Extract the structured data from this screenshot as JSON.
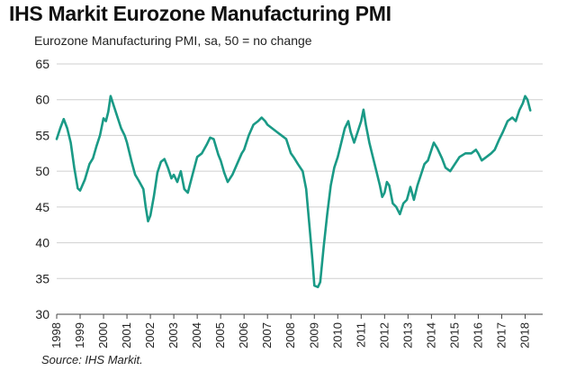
{
  "chart_data": {
    "type": "line",
    "title": "IHS Markit Eurozone Manufacturing PMI",
    "subtitle": "Eurozone Manufacturing PMI, sa, 50 = no change",
    "source": "Source: IHS Markit.",
    "xlabel": "",
    "ylabel": "",
    "ylim": [
      30,
      65
    ],
    "xlim": [
      1998,
      2018.75
    ],
    "yticks": [
      "30",
      "35",
      "40",
      "45",
      "50",
      "55",
      "60",
      "65"
    ],
    "xticks": [
      "1998",
      "1999",
      "2000",
      "2001",
      "2002",
      "2003",
      "2004",
      "2005",
      "2006",
      "2007",
      "2008",
      "2009",
      "2010",
      "2011",
      "2012",
      "2013",
      "2014",
      "2015",
      "2016",
      "2017",
      "2018"
    ],
    "grid": true,
    "color": "#1a9a86",
    "series": [
      {
        "name": "Eurozone Manufacturing PMI",
        "points": [
          [
            1998.0,
            54.5
          ],
          [
            1998.15,
            56.0
          ],
          [
            1998.3,
            57.3
          ],
          [
            1998.45,
            56.0
          ],
          [
            1998.6,
            54.0
          ],
          [
            1998.75,
            50.5
          ],
          [
            1998.9,
            47.6
          ],
          [
            1999.0,
            47.3
          ],
          [
            1999.2,
            48.8
          ],
          [
            1999.4,
            51.0
          ],
          [
            1999.55,
            51.8
          ],
          [
            1999.7,
            53.5
          ],
          [
            1999.85,
            55.0
          ],
          [
            2000.0,
            57.4
          ],
          [
            2000.1,
            57.0
          ],
          [
            2000.2,
            58.3
          ],
          [
            2000.3,
            60.5
          ],
          [
            2000.45,
            59.0
          ],
          [
            2000.6,
            57.5
          ],
          [
            2000.75,
            56.0
          ],
          [
            2000.9,
            55.0
          ],
          [
            2001.0,
            54.0
          ],
          [
            2001.2,
            51.3
          ],
          [
            2001.35,
            49.5
          ],
          [
            2001.5,
            48.7
          ],
          [
            2001.7,
            47.5
          ],
          [
            2001.8,
            45.0
          ],
          [
            2001.9,
            43.0
          ],
          [
            2002.0,
            43.8
          ],
          [
            2002.15,
            46.5
          ],
          [
            2002.3,
            49.8
          ],
          [
            2002.45,
            51.3
          ],
          [
            2002.6,
            51.7
          ],
          [
            2002.75,
            50.5
          ],
          [
            2002.9,
            49.0
          ],
          [
            2003.0,
            49.5
          ],
          [
            2003.15,
            48.5
          ],
          [
            2003.3,
            50.0
          ],
          [
            2003.45,
            47.5
          ],
          [
            2003.6,
            47.0
          ],
          [
            2003.8,
            49.5
          ],
          [
            2004.0,
            52.0
          ],
          [
            2004.2,
            52.5
          ],
          [
            2004.4,
            53.7
          ],
          [
            2004.55,
            54.7
          ],
          [
            2004.7,
            54.5
          ],
          [
            2004.9,
            52.3
          ],
          [
            2005.0,
            51.5
          ],
          [
            2005.15,
            49.8
          ],
          [
            2005.3,
            48.5
          ],
          [
            2005.5,
            49.5
          ],
          [
            2005.7,
            51.0
          ],
          [
            2005.9,
            52.5
          ],
          [
            2006.0,
            53.0
          ],
          [
            2006.2,
            55.0
          ],
          [
            2006.4,
            56.5
          ],
          [
            2006.6,
            57.0
          ],
          [
            2006.75,
            57.5
          ],
          [
            2006.9,
            57.0
          ],
          [
            2007.0,
            56.5
          ],
          [
            2007.2,
            56.0
          ],
          [
            2007.4,
            55.5
          ],
          [
            2007.6,
            55.0
          ],
          [
            2007.8,
            54.5
          ],
          [
            2008.0,
            52.5
          ],
          [
            2008.15,
            51.8
          ],
          [
            2008.3,
            51.0
          ],
          [
            2008.5,
            50.0
          ],
          [
            2008.65,
            47.5
          ],
          [
            2008.8,
            42.0
          ],
          [
            2008.92,
            37.5
          ],
          [
            2009.0,
            34.0
          ],
          [
            2009.15,
            33.8
          ],
          [
            2009.25,
            34.5
          ],
          [
            2009.4,
            39.5
          ],
          [
            2009.55,
            44.0
          ],
          [
            2009.7,
            48.0
          ],
          [
            2009.85,
            50.5
          ],
          [
            2010.0,
            52.0
          ],
          [
            2010.15,
            54.0
          ],
          [
            2010.3,
            56.0
          ],
          [
            2010.45,
            57.0
          ],
          [
            2010.55,
            55.5
          ],
          [
            2010.7,
            54.0
          ],
          [
            2010.85,
            55.5
          ],
          [
            2011.0,
            57.0
          ],
          [
            2011.1,
            58.6
          ],
          [
            2011.2,
            56.5
          ],
          [
            2011.35,
            54.0
          ],
          [
            2011.5,
            52.0
          ],
          [
            2011.65,
            50.0
          ],
          [
            2011.8,
            48.0
          ],
          [
            2011.9,
            46.4
          ],
          [
            2012.0,
            47.0
          ],
          [
            2012.1,
            48.5
          ],
          [
            2012.2,
            48.0
          ],
          [
            2012.35,
            45.5
          ],
          [
            2012.5,
            45.0
          ],
          [
            2012.65,
            44.0
          ],
          [
            2012.8,
            45.5
          ],
          [
            2012.95,
            46.0
          ],
          [
            2013.1,
            47.8
          ],
          [
            2013.25,
            46.0
          ],
          [
            2013.4,
            48.0
          ],
          [
            2013.55,
            49.5
          ],
          [
            2013.7,
            51.0
          ],
          [
            2013.85,
            51.5
          ],
          [
            2014.0,
            53.0
          ],
          [
            2014.1,
            54.0
          ],
          [
            2014.25,
            53.2
          ],
          [
            2014.45,
            51.8
          ],
          [
            2014.6,
            50.5
          ],
          [
            2014.8,
            50.0
          ],
          [
            2015.0,
            51.0
          ],
          [
            2015.2,
            52.0
          ],
          [
            2015.45,
            52.5
          ],
          [
            2015.7,
            52.5
          ],
          [
            2015.9,
            53.0
          ],
          [
            2016.0,
            52.5
          ],
          [
            2016.15,
            51.5
          ],
          [
            2016.35,
            52.0
          ],
          [
            2016.55,
            52.5
          ],
          [
            2016.7,
            53.0
          ],
          [
            2016.9,
            54.5
          ],
          [
            2017.05,
            55.5
          ],
          [
            2017.25,
            57.0
          ],
          [
            2017.45,
            57.5
          ],
          [
            2017.6,
            57.0
          ],
          [
            2017.75,
            58.5
          ],
          [
            2017.9,
            59.5
          ],
          [
            2018.0,
            60.5
          ],
          [
            2018.1,
            60.0
          ],
          [
            2018.22,
            58.5
          ]
        ]
      }
    ]
  }
}
